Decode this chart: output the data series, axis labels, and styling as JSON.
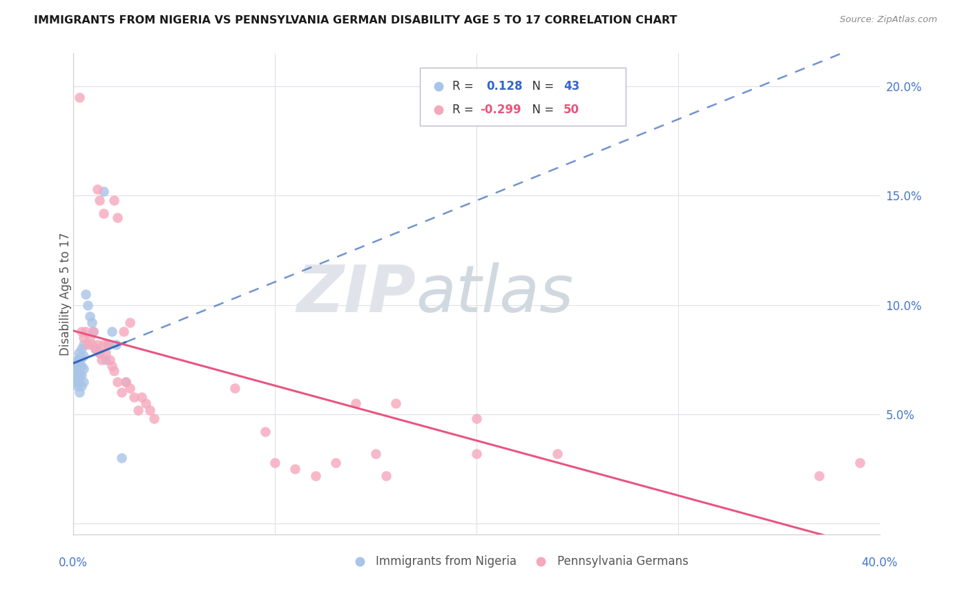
{
  "title": "IMMIGRANTS FROM NIGERIA VS PENNSYLVANIA GERMAN DISABILITY AGE 5 TO 17 CORRELATION CHART",
  "source": "Source: ZipAtlas.com",
  "ylabel": "Disability Age 5 to 17",
  "xlim": [
    0.0,
    0.4
  ],
  "ylim": [
    -0.005,
    0.215
  ],
  "yticks": [
    0.0,
    0.05,
    0.1,
    0.15,
    0.2
  ],
  "ytick_labels": [
    "",
    "5.0%",
    "10.0%",
    "15.0%",
    "20.0%"
  ],
  "xticks": [
    0.0,
    0.1,
    0.2,
    0.3,
    0.4
  ],
  "legend_blue_r": "0.128",
  "legend_blue_n": "43",
  "legend_pink_r": "-0.299",
  "legend_pink_n": "50",
  "legend_label_blue": "Immigrants from Nigeria",
  "legend_label_pink": "Pennsylvania Germans",
  "blue_color": "#a8c4e8",
  "pink_color": "#f5a8bc",
  "blue_line_color": "#3366bb",
  "pink_line_color": "#e85580",
  "blue_scatter": [
    [
      0.0005,
      0.072
    ],
    [
      0.0008,
      0.07
    ],
    [
      0.001,
      0.073
    ],
    [
      0.001,
      0.068
    ],
    [
      0.001,
      0.065
    ],
    [
      0.0012,
      0.072
    ],
    [
      0.0015,
      0.068
    ],
    [
      0.0015,
      0.065
    ],
    [
      0.002,
      0.075
    ],
    [
      0.002,
      0.072
    ],
    [
      0.002,
      0.07
    ],
    [
      0.002,
      0.067
    ],
    [
      0.002,
      0.063
    ],
    [
      0.0025,
      0.078
    ],
    [
      0.003,
      0.075
    ],
    [
      0.003,
      0.072
    ],
    [
      0.003,
      0.068
    ],
    [
      0.003,
      0.065
    ],
    [
      0.003,
      0.06
    ],
    [
      0.003,
      0.076
    ],
    [
      0.004,
      0.08
    ],
    [
      0.004,
      0.076
    ],
    [
      0.004,
      0.072
    ],
    [
      0.004,
      0.068
    ],
    [
      0.004,
      0.063
    ],
    [
      0.005,
      0.082
    ],
    [
      0.005,
      0.077
    ],
    [
      0.005,
      0.071
    ],
    [
      0.005,
      0.065
    ],
    [
      0.006,
      0.105
    ],
    [
      0.007,
      0.1
    ],
    [
      0.008,
      0.095
    ],
    [
      0.009,
      0.092
    ],
    [
      0.01,
      0.088
    ],
    [
      0.011,
      0.08
    ],
    [
      0.013,
      0.078
    ],
    [
      0.015,
      0.152
    ],
    [
      0.016,
      0.075
    ],
    [
      0.017,
      0.082
    ],
    [
      0.019,
      0.088
    ],
    [
      0.021,
      0.082
    ],
    [
      0.024,
      0.03
    ],
    [
      0.026,
      0.065
    ]
  ],
  "pink_scatter": [
    [
      0.003,
      0.195
    ],
    [
      0.012,
      0.153
    ],
    [
      0.013,
      0.148
    ],
    [
      0.015,
      0.142
    ],
    [
      0.02,
      0.148
    ],
    [
      0.022,
      0.14
    ],
    [
      0.025,
      0.088
    ],
    [
      0.028,
      0.092
    ],
    [
      0.004,
      0.088
    ],
    [
      0.005,
      0.085
    ],
    [
      0.006,
      0.088
    ],
    [
      0.007,
      0.082
    ],
    [
      0.008,
      0.085
    ],
    [
      0.009,
      0.082
    ],
    [
      0.01,
      0.088
    ],
    [
      0.011,
      0.08
    ],
    [
      0.012,
      0.082
    ],
    [
      0.013,
      0.078
    ],
    [
      0.014,
      0.075
    ],
    [
      0.015,
      0.082
    ],
    [
      0.016,
      0.078
    ],
    [
      0.017,
      0.082
    ],
    [
      0.018,
      0.075
    ],
    [
      0.019,
      0.072
    ],
    [
      0.02,
      0.07
    ],
    [
      0.022,
      0.065
    ],
    [
      0.024,
      0.06
    ],
    [
      0.026,
      0.065
    ],
    [
      0.028,
      0.062
    ],
    [
      0.03,
      0.058
    ],
    [
      0.032,
      0.052
    ],
    [
      0.034,
      0.058
    ],
    [
      0.036,
      0.055
    ],
    [
      0.038,
      0.052
    ],
    [
      0.04,
      0.048
    ],
    [
      0.08,
      0.062
    ],
    [
      0.095,
      0.042
    ],
    [
      0.1,
      0.028
    ],
    [
      0.11,
      0.025
    ],
    [
      0.12,
      0.022
    ],
    [
      0.13,
      0.028
    ],
    [
      0.14,
      0.055
    ],
    [
      0.15,
      0.032
    ],
    [
      0.155,
      0.022
    ],
    [
      0.16,
      0.055
    ],
    [
      0.2,
      0.048
    ],
    [
      0.2,
      0.032
    ],
    [
      0.24,
      0.032
    ],
    [
      0.37,
      0.022
    ],
    [
      0.39,
      0.028
    ]
  ],
  "watermark_zip": "ZIP",
  "watermark_atlas": "atlas",
  "background_color": "#ffffff",
  "grid_color": "#dde0e8"
}
